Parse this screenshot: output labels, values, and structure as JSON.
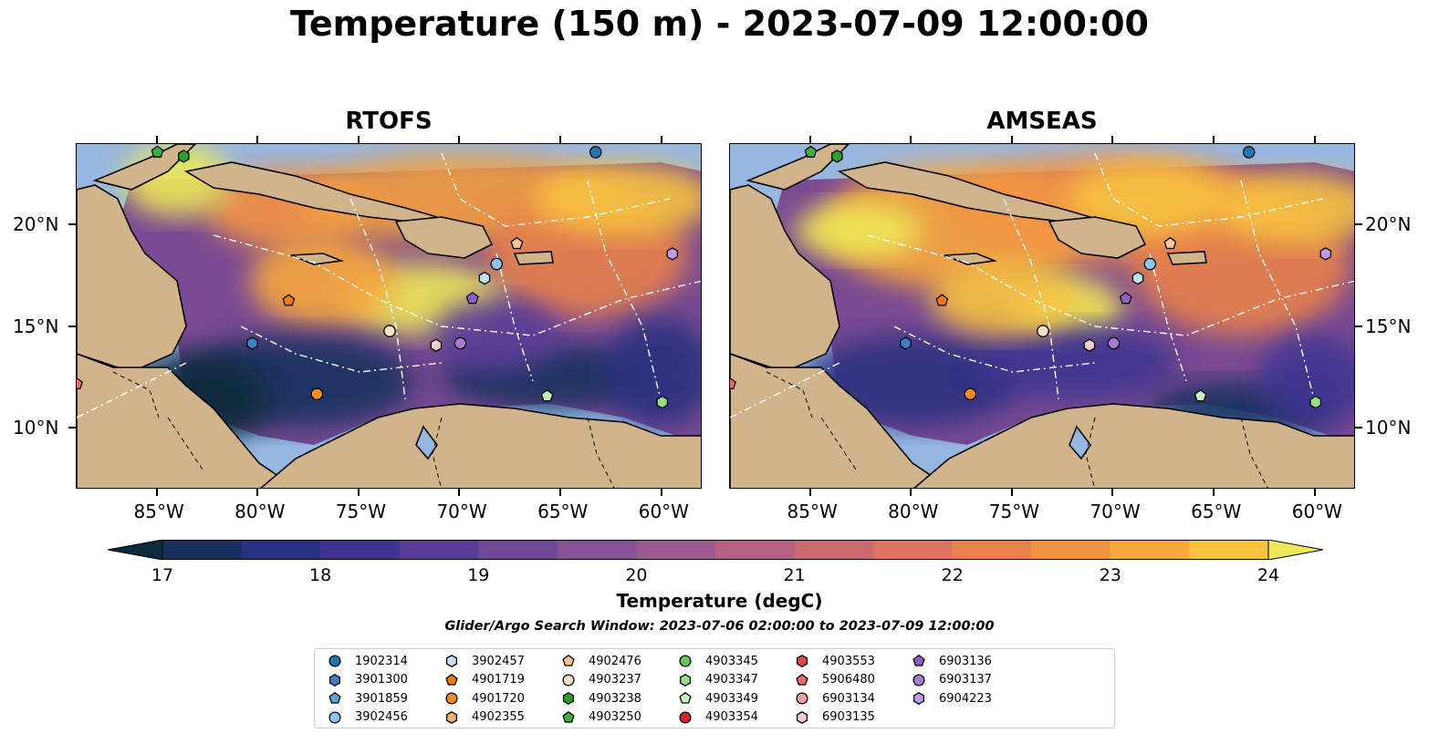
{
  "figure": {
    "title": "Temperature (150 m) - 2023-07-09 12:00:00",
    "panels": [
      {
        "title": "RTOFS"
      },
      {
        "title": "AMSEAS"
      }
    ],
    "lon_labels": [
      "85°W",
      "80°W",
      "75°W",
      "70°W",
      "65°W",
      "60°W"
    ],
    "lat_labels": [
      "20°N",
      "15°N",
      "10°N"
    ],
    "colors": {
      "land": "#d2b48c",
      "ocean_shallow": "#97b6e1",
      "deep_dark": "#06202f"
    }
  },
  "colorbar": {
    "title": "Temperature (degC)",
    "ticks": [
      "17",
      "18",
      "19",
      "20",
      "21",
      "22",
      "23",
      "24"
    ],
    "colors": [
      "#0b2a3b",
      "#17315e",
      "#2a3180",
      "#3d3490",
      "#5a3c97",
      "#6f4897",
      "#845294",
      "#9a5a8e",
      "#b56282",
      "#c86a70",
      "#db735e",
      "#e8824c",
      "#f39444",
      "#f8a83e",
      "#f8c33f",
      "#eee858"
    ]
  },
  "search_window": "Glider/Argo Search Window: 2023-07-06 02:00:00 to 2023-07-09 12:00:00",
  "legend": {
    "items": [
      {
        "id": "1902314",
        "shape": "circle",
        "color": "#1f77b4"
      },
      {
        "id": "3901300",
        "shape": "hexagon",
        "color": "#3b82c4"
      },
      {
        "id": "3901859",
        "shape": "pentagon",
        "color": "#5aa9d6"
      },
      {
        "id": "3902456",
        "shape": "circle",
        "color": "#8ec5ee"
      },
      {
        "id": "3902457",
        "shape": "hexagon",
        "color": "#bfe2f7"
      },
      {
        "id": "4901719",
        "shape": "pentagon",
        "color": "#f27b0c"
      },
      {
        "id": "4901720",
        "shape": "circle",
        "color": "#f58b25"
      },
      {
        "id": "4902355",
        "shape": "hexagon",
        "color": "#f9b26b"
      },
      {
        "id": "4902476",
        "shape": "pentagon",
        "color": "#fbc796"
      },
      {
        "id": "4903237",
        "shape": "circle",
        "color": "#fde2c8"
      },
      {
        "id": "4903238",
        "shape": "hexagon",
        "color": "#2ca02c"
      },
      {
        "id": "4903250",
        "shape": "pentagon",
        "color": "#3cb043"
      },
      {
        "id": "4903345",
        "shape": "circle",
        "color": "#67c766"
      },
      {
        "id": "4903347",
        "shape": "hexagon",
        "color": "#98df8a"
      },
      {
        "id": "4903349",
        "shape": "pentagon",
        "color": "#c7f0c0"
      },
      {
        "id": "4903354",
        "shape": "circle",
        "color": "#d62728"
      },
      {
        "id": "4903553",
        "shape": "hexagon",
        "color": "#e0474a"
      },
      {
        "id": "5906480",
        "shape": "pentagon",
        "color": "#ea6b6d"
      },
      {
        "id": "6903134",
        "shape": "circle",
        "color": "#f2a0a0"
      },
      {
        "id": "6903135",
        "shape": "hexagon",
        "color": "#f9cccc"
      },
      {
        "id": "6903136",
        "shape": "pentagon",
        "color": "#8f5fc8"
      },
      {
        "id": "6903137",
        "shape": "circle",
        "color": "#a87ad6"
      },
      {
        "id": "6904223",
        "shape": "hexagon",
        "color": "#c39ae6"
      }
    ]
  },
  "floats_on_map": [
    {
      "id": "4903250",
      "lon": -85.0,
      "lat": 23.6
    },
    {
      "id": "4903238",
      "lon": -83.7,
      "lat": 23.4
    },
    {
      "id": "1902314",
      "lon": -63.3,
      "lat": 23.6
    },
    {
      "id": "4902476",
      "lon": -67.2,
      "lat": 19.1
    },
    {
      "id": "6904223",
      "lon": -59.5,
      "lat": 18.6
    },
    {
      "id": "3902456",
      "lon": -68.2,
      "lat": 18.1
    },
    {
      "id": "3902457",
      "lon": -68.8,
      "lat": 17.4
    },
    {
      "id": "4901719",
      "lon": -78.5,
      "lat": 16.3
    },
    {
      "id": "6903136",
      "lon": -69.4,
      "lat": 16.4
    },
    {
      "id": "4903237",
      "lon": -73.5,
      "lat": 14.8
    },
    {
      "id": "6903135",
      "lon": -71.2,
      "lat": 14.1
    },
    {
      "id": "6903137",
      "lon": -70.0,
      "lat": 14.2
    },
    {
      "id": "3901300",
      "lon": -80.3,
      "lat": 14.2
    },
    {
      "id": "4901720",
      "lon": -77.1,
      "lat": 11.7
    },
    {
      "id": "4903349",
      "lon": -65.7,
      "lat": 11.6
    },
    {
      "id": "4903347",
      "lon": -60.0,
      "lat": 11.3
    },
    {
      "id": "5906480",
      "lon": -89.0,
      "lat": 12.2
    }
  ]
}
